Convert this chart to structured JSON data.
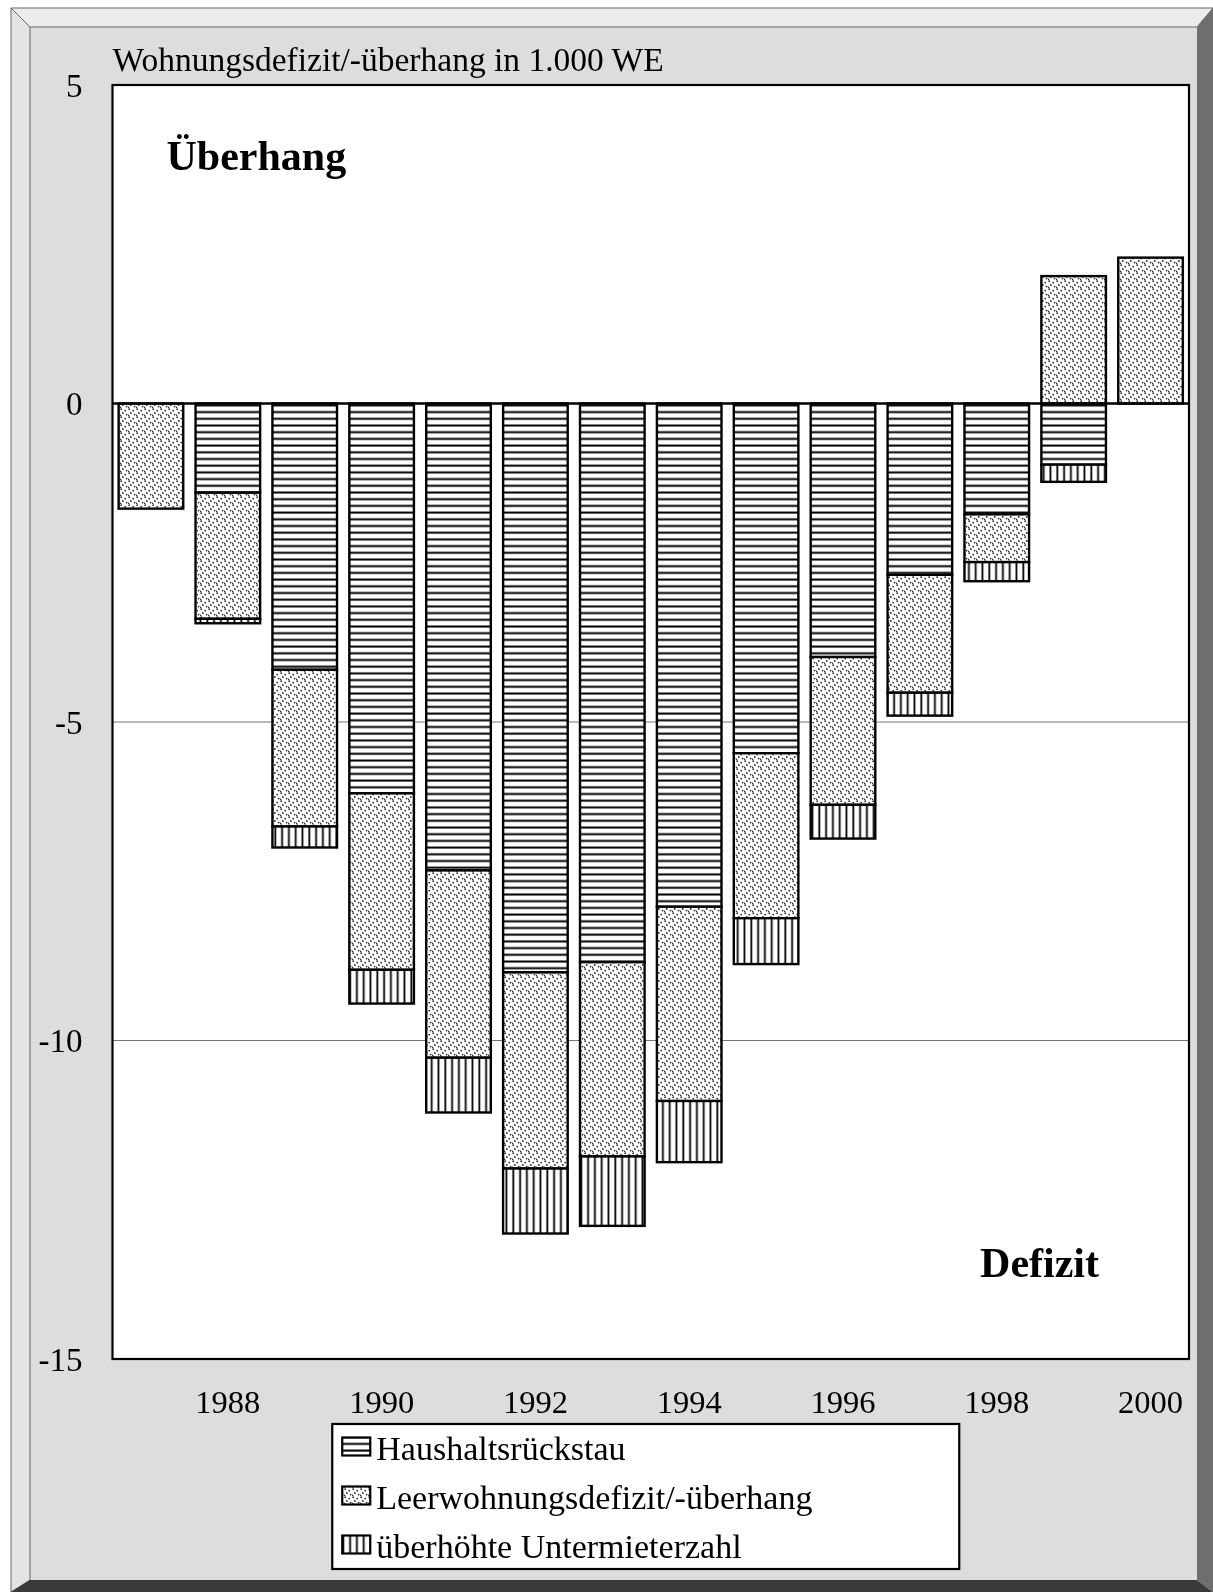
{
  "chart_data": {
    "type": "bar",
    "stacked": true,
    "ylabel": "Wohnungsdefizit/-überhang in 1.000 WE",
    "categories": [
      null,
      "1988",
      null,
      "1990",
      null,
      "1992",
      null,
      "1994",
      null,
      "1996",
      null,
      "1998",
      null,
      "2000"
    ],
    "series": [
      {
        "name": "Haushaltsrückstau",
        "color": "#000000",
        "values": [
          null,
          -1.4,
          -4.18,
          -6.12,
          -7.33,
          -8.93,
          -8.77,
          -7.9,
          -5.49,
          -3.98,
          -2.69,
          -1.74,
          -0.96,
          null
        ]
      },
      {
        "name": "Leerwohnungsdefizit/-überhang",
        "color": "#000000",
        "values": [
          -1.65,
          -1.98,
          -2.46,
          -2.77,
          -2.94,
          -3.08,
          -3.05,
          -3.05,
          -2.59,
          -2.32,
          -1.85,
          -0.75,
          2.0,
          2.29
        ]
      },
      {
        "name": "überhöhte Untermieterzahl",
        "color": "#000000",
        "values": [
          null,
          -0.07,
          -0.33,
          -0.53,
          -0.86,
          -1.02,
          -1.09,
          -0.96,
          -0.72,
          -0.53,
          -0.36,
          -0.3,
          -0.27,
          null
        ]
      }
    ],
    "ylim": [
      -15,
      5
    ],
    "yticks": [
      -15,
      -10,
      -5,
      0,
      5
    ],
    "grid": "y",
    "legend": "bottom",
    "annotations": [
      "Überhang",
      "Defizit"
    ]
  }
}
